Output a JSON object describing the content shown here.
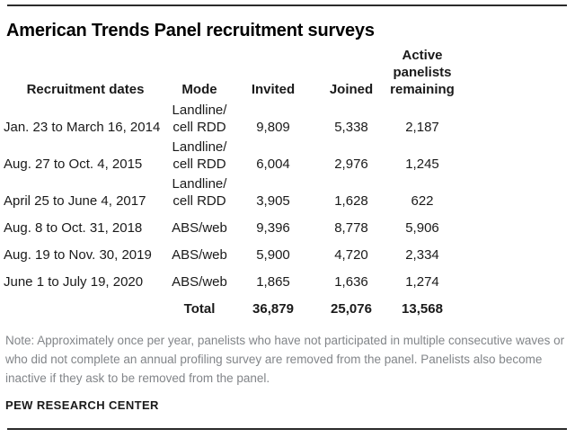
{
  "header": {
    "title": "American Trends Panel recruitment surveys"
  },
  "colors": {
    "title_text": "#000000",
    "table_text": "#1a1a1a",
    "note_text": "#828589",
    "rule": "#2b2b2b",
    "background": "#ffffff"
  },
  "table": {
    "headers": {
      "dates": "Recruitment dates",
      "mode": "Mode",
      "invited": "Invited",
      "joined": "Joined",
      "active": "Active\npanelists\nremaining"
    },
    "rows": [
      {
        "dates": "Jan. 23 to March 16, 2014",
        "mode": "Landline/\ncell RDD",
        "invited": "9,809",
        "joined": "5,338",
        "active": "2,187"
      },
      {
        "dates": "Aug. 27 to Oct. 4, 2015",
        "mode": "Landline/\ncell RDD",
        "invited": "6,004",
        "joined": "2,976",
        "active": "1,245"
      },
      {
        "dates": "April 25 to June 4, 2017",
        "mode": "Landline/\ncell RDD",
        "invited": "3,905",
        "joined": "1,628",
        "active": "622"
      },
      {
        "dates": "Aug. 8 to Oct. 31, 2018",
        "mode": "ABS/web",
        "invited": "9,396",
        "joined": "8,778",
        "active": "5,906"
      },
      {
        "dates": "Aug. 19 to Nov. 30, 2019",
        "mode": "ABS/web",
        "invited": "5,900",
        "joined": "4,720",
        "active": "2,334"
      },
      {
        "dates": "June 1 to July 19, 2020",
        "mode": "ABS/web",
        "invited": "1,865",
        "joined": "1,636",
        "active": "1,274"
      }
    ],
    "total": {
      "label": "Total",
      "invited": "36,879",
      "joined": "25,076",
      "active": "13,568"
    }
  },
  "footer": {
    "note": "Note: Approximately once per year, panelists who have not participated in multiple consecutive waves or who did not complete an annual profiling survey are removed from the panel. Panelists also become inactive if they ask to be removed from the panel.",
    "source": "PEW RESEARCH CENTER"
  },
  "chart_data": {
    "type": "table",
    "title": "American Trends Panel recruitment surveys",
    "columns": [
      "Recruitment dates",
      "Mode",
      "Invited",
      "Joined",
      "Active panelists remaining"
    ],
    "rows": [
      [
        "Jan. 23 to March 16, 2014",
        "Landline/cell RDD",
        9809,
        5338,
        2187
      ],
      [
        "Aug. 27 to Oct. 4, 2015",
        "Landline/cell RDD",
        6004,
        2976,
        1245
      ],
      [
        "April 25 to June 4, 2017",
        "Landline/cell RDD",
        3905,
        1628,
        622
      ],
      [
        "Aug. 8 to Oct. 31, 2018",
        "ABS/web",
        9396,
        8778,
        5906
      ],
      [
        "Aug. 19 to Nov. 30, 2019",
        "ABS/web",
        5900,
        4720,
        2334
      ],
      [
        "June 1 to July 19, 2020",
        "ABS/web",
        1865,
        1636,
        1274
      ]
    ],
    "total_row": [
      "Total",
      36879,
      25076,
      13568
    ],
    "note": "Note: Approximately once per year, panelists who have not participated in multiple consecutive waves or who did not complete an annual profiling survey are removed from the panel. Panelists also become inactive if they ask to be removed from the panel.",
    "source": "PEW RESEARCH CENTER"
  }
}
